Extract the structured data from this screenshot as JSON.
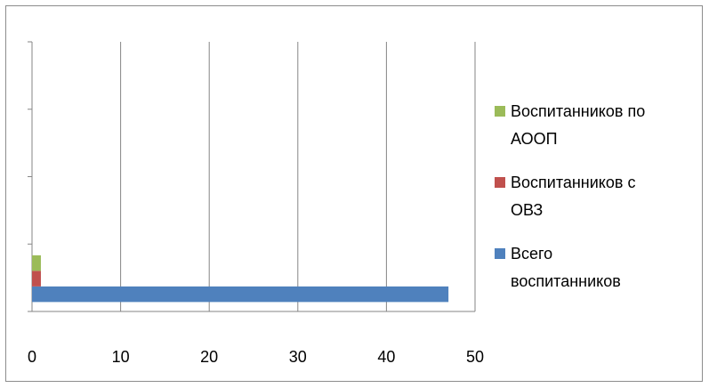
{
  "chart_data": {
    "type": "bar",
    "orientation": "horizontal",
    "stacked": false,
    "title": "",
    "xlabel": "",
    "ylabel": "",
    "xlim": [
      0,
      50
    ],
    "x_ticks": [
      0,
      10,
      20,
      30,
      40,
      50
    ],
    "x_tick_labels": [
      "0",
      "10",
      "20",
      "30",
      "40",
      "50"
    ],
    "categories": [
      "",
      "",
      "",
      ""
    ],
    "grid": "vertical major gridlines",
    "legend_position": "right",
    "series": [
      {
        "name": "Всего воспитанников",
        "legend_lines": [
          "Всего",
          "воспитанников"
        ],
        "color": "#4f81bd",
        "values": [
          47,
          0,
          0,
          0
        ]
      },
      {
        "name": "Воспитанников с ОВЗ",
        "legend_lines": [
          "Воспитанников с",
          "ОВЗ"
        ],
        "color": "#c0504d",
        "values": [
          1,
          0,
          0,
          0
        ]
      },
      {
        "name": "Воспитанников по АООП",
        "legend_lines": [
          "Воспитанников по",
          "АООП"
        ],
        "color": "#9bbb59",
        "values": [
          1,
          0,
          0,
          0
        ]
      }
    ],
    "legend_order": [
      2,
      1,
      0
    ]
  }
}
